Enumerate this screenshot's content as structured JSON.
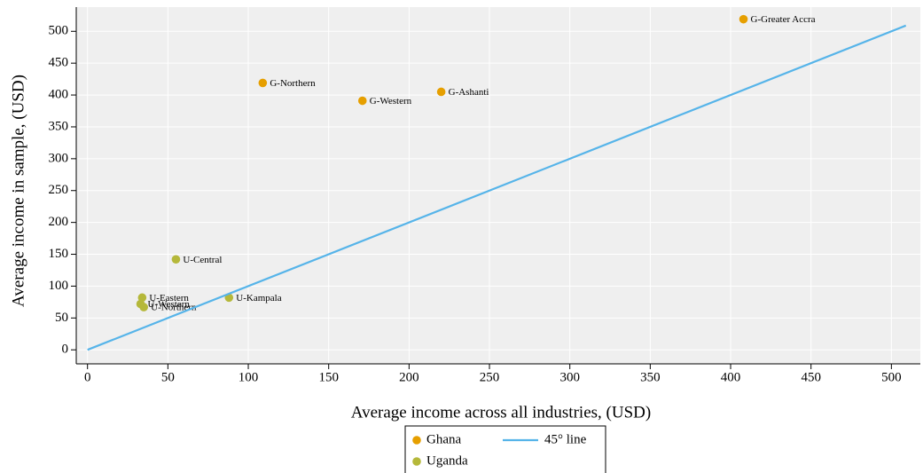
{
  "chart_data": {
    "type": "scatter",
    "xlabel": "Average income across all industries, (USD)",
    "ylabel": "Average income in sample, (USD)",
    "xlim": [
      -7,
      518
    ],
    "ylim": [
      -22,
      538
    ],
    "xticks": [
      0,
      50,
      100,
      150,
      200,
      250,
      300,
      350,
      400,
      450,
      500
    ],
    "yticks": [
      0,
      50,
      100,
      150,
      200,
      250,
      300,
      350,
      400,
      450,
      500
    ],
    "grid": true,
    "series": [
      {
        "name": "Ghana",
        "color": "#e69f00",
        "x": [
          408,
          109,
          171,
          220
        ],
        "y": [
          519,
          419,
          391,
          405
        ],
        "labels": [
          "G-Greater Accra",
          "G-Northern",
          "G-Western",
          "G-Ashanti"
        ]
      },
      {
        "name": "Uganda",
        "color": "#b5b83a",
        "x": [
          55,
          88,
          34,
          33,
          35
        ],
        "y": [
          142,
          82,
          82,
          72,
          67
        ],
        "labels": [
          "U-Central",
          "U-Kampala",
          "U-Eastern",
          "U-Western",
          "U-Northern"
        ]
      },
      {
        "name": "45° line",
        "type": "line",
        "color": "#56b4e9",
        "x": [
          0,
          509
        ],
        "y": [
          0,
          509
        ]
      }
    ]
  }
}
